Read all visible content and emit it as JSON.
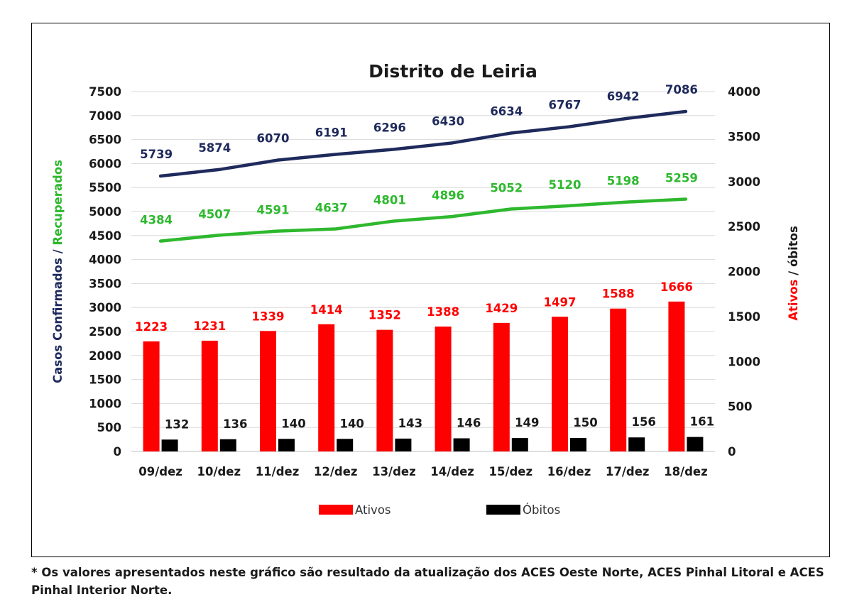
{
  "chart_data": {
    "type": "bar",
    "title": "Distrito de Leiria",
    "categories": [
      "09/dez",
      "10/dez",
      "11/dez",
      "12/dez",
      "13/dez",
      "14/dez",
      "15/dez",
      "16/dez",
      "17/dez",
      "18/dez"
    ],
    "left_axis": {
      "label_parts": [
        {
          "text": "Casos Confirmados / ",
          "color": "#1f2a5c"
        },
        {
          "text": "Recuperados",
          "color": "#2eb82e"
        }
      ],
      "ylim": [
        0,
        7500
      ],
      "ticks": [
        0,
        500,
        1000,
        1500,
        2000,
        2500,
        3000,
        3500,
        4000,
        4500,
        5000,
        5500,
        6000,
        6500,
        7000,
        7500
      ]
    },
    "right_axis": {
      "label_parts": [
        {
          "text": "Ativos",
          "color": "#ff0000"
        },
        {
          "text": " / óbitos",
          "color": "#1a1a1a"
        }
      ],
      "ylim": [
        0,
        4000
      ],
      "ticks": [
        0,
        500,
        1000,
        1500,
        2000,
        2500,
        3000,
        3500,
        4000
      ]
    },
    "series": [
      {
        "name": "Casos Confirmados",
        "kind": "line",
        "axis": "left",
        "color": "#1f2a5c",
        "values": [
          5739,
          5874,
          6070,
          6191,
          6296,
          6430,
          6634,
          6767,
          6942,
          7086
        ]
      },
      {
        "name": "Recuperados",
        "kind": "line",
        "axis": "left",
        "color": "#2eb82e",
        "values": [
          4384,
          4507,
          4591,
          4637,
          4801,
          4896,
          5052,
          5120,
          5198,
          5259
        ]
      },
      {
        "name": "Ativos",
        "kind": "bar",
        "axis": "right",
        "color": "#ff0000",
        "values": [
          1223,
          1231,
          1339,
          1414,
          1352,
          1388,
          1429,
          1497,
          1588,
          1666
        ]
      },
      {
        "name": "Óbitos",
        "kind": "bar",
        "axis": "right",
        "color": "#000000",
        "values": [
          132,
          136,
          140,
          140,
          143,
          146,
          149,
          150,
          156,
          161
        ]
      }
    ],
    "legend": [
      "Ativos",
      "Óbitos"
    ],
    "legend_position": "bottom",
    "grid": true
  },
  "footnote": "* Os valores apresentados neste gráfico são resultado da atualização dos ACES Oeste Norte, ACES Pinhal Litoral e ACES Pinhal Interior Norte."
}
